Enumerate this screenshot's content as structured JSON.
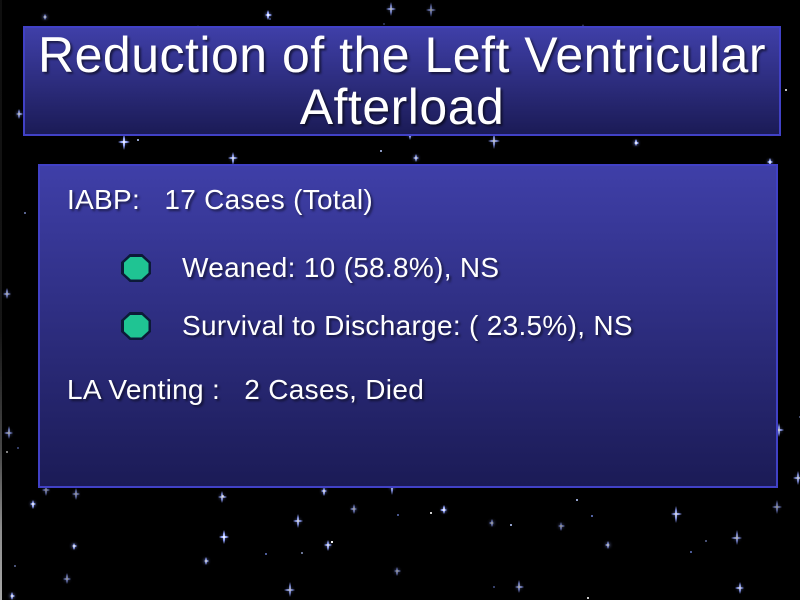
{
  "slide": {
    "title": "Reduction of the Left Ventricular Afterload",
    "body": {
      "lines": [
        {
          "text": "IABP:   17 Cases (Total)",
          "bullet": false
        },
        {
          "text": "Weaned: 10 (58.8%), NS",
          "bullet": true
        },
        {
          "text": "Survival to Discharge: ( 23.5%), NS",
          "bullet": true
        },
        {
          "text": "LA Venting :   2 Cases, Died",
          "bullet": false
        }
      ]
    }
  },
  "icons": {
    "bullet": "octagon-bullet-icon",
    "background": "starfield"
  },
  "colors": {
    "bg_black": "#000000",
    "box_fill_top": "#3f3fa8",
    "box_fill_bottom": "#1b1b56",
    "box_border": "#4141c6",
    "title_text": "#ffffff",
    "body_text": "#ffffff",
    "bullet_fill": "#1fc493",
    "bullet_outline": "#0c1a38",
    "star_core": "#ffffff",
    "star_glow": "#8fa0ff",
    "edge_gray": "#8c8c8c"
  }
}
